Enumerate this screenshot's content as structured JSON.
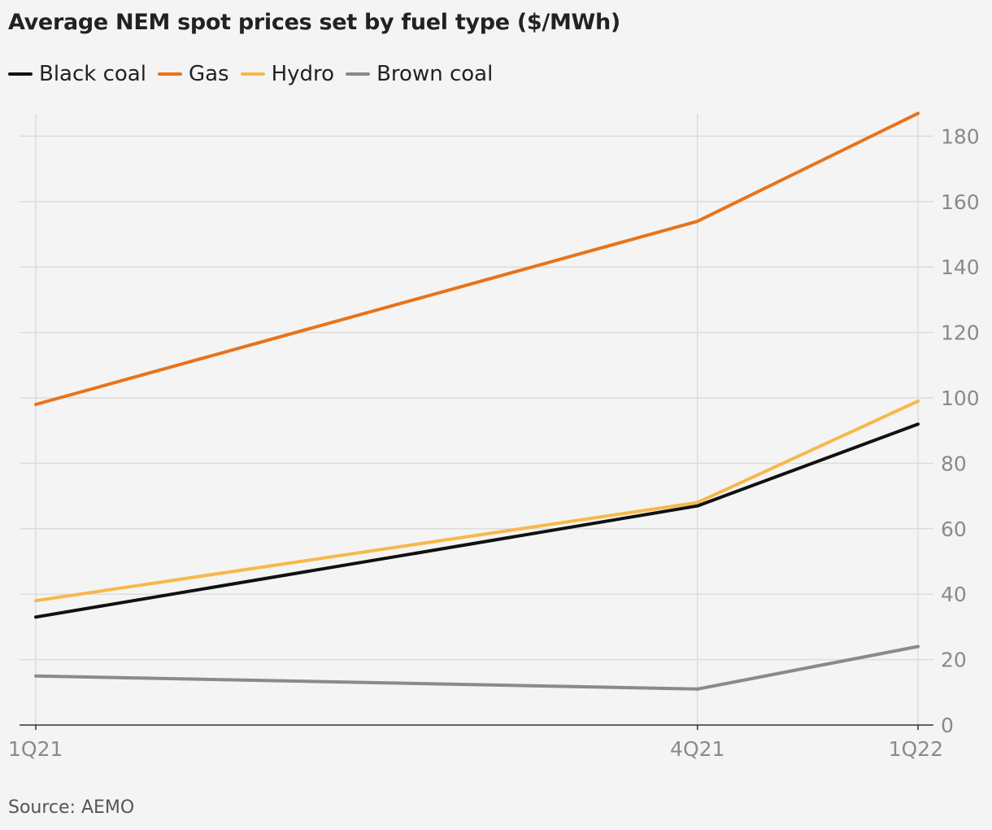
{
  "chart_data": {
    "type": "line",
    "title": "Average NEM spot prices set by fuel type ($/MWh)",
    "xlabel": "",
    "ylabel": "",
    "categories": [
      "1Q21",
      "4Q21",
      "1Q22"
    ],
    "x_positions": [
      0,
      3,
      4
    ],
    "series": [
      {
        "name": "Black coal",
        "color": "#111111",
        "values": [
          33,
          67,
          92
        ]
      },
      {
        "name": "Gas",
        "color": "#e8731a",
        "values": [
          98,
          154,
          187
        ]
      },
      {
        "name": "Hydro",
        "color": "#f7b84b",
        "values": [
          38,
          68,
          99
        ]
      },
      {
        "name": "Brown coal",
        "color": "#8a8a8a",
        "values": [
          15,
          11,
          24
        ]
      }
    ],
    "ylim": [
      0,
      185
    ],
    "y_ticks": [
      "0",
      "20",
      "40",
      "60",
      "80",
      "100",
      "120",
      "140",
      "160",
      "180"
    ],
    "y_axis_side": "right",
    "grid": true,
    "legend_position": "top-left"
  },
  "source": "Source: AEMO"
}
